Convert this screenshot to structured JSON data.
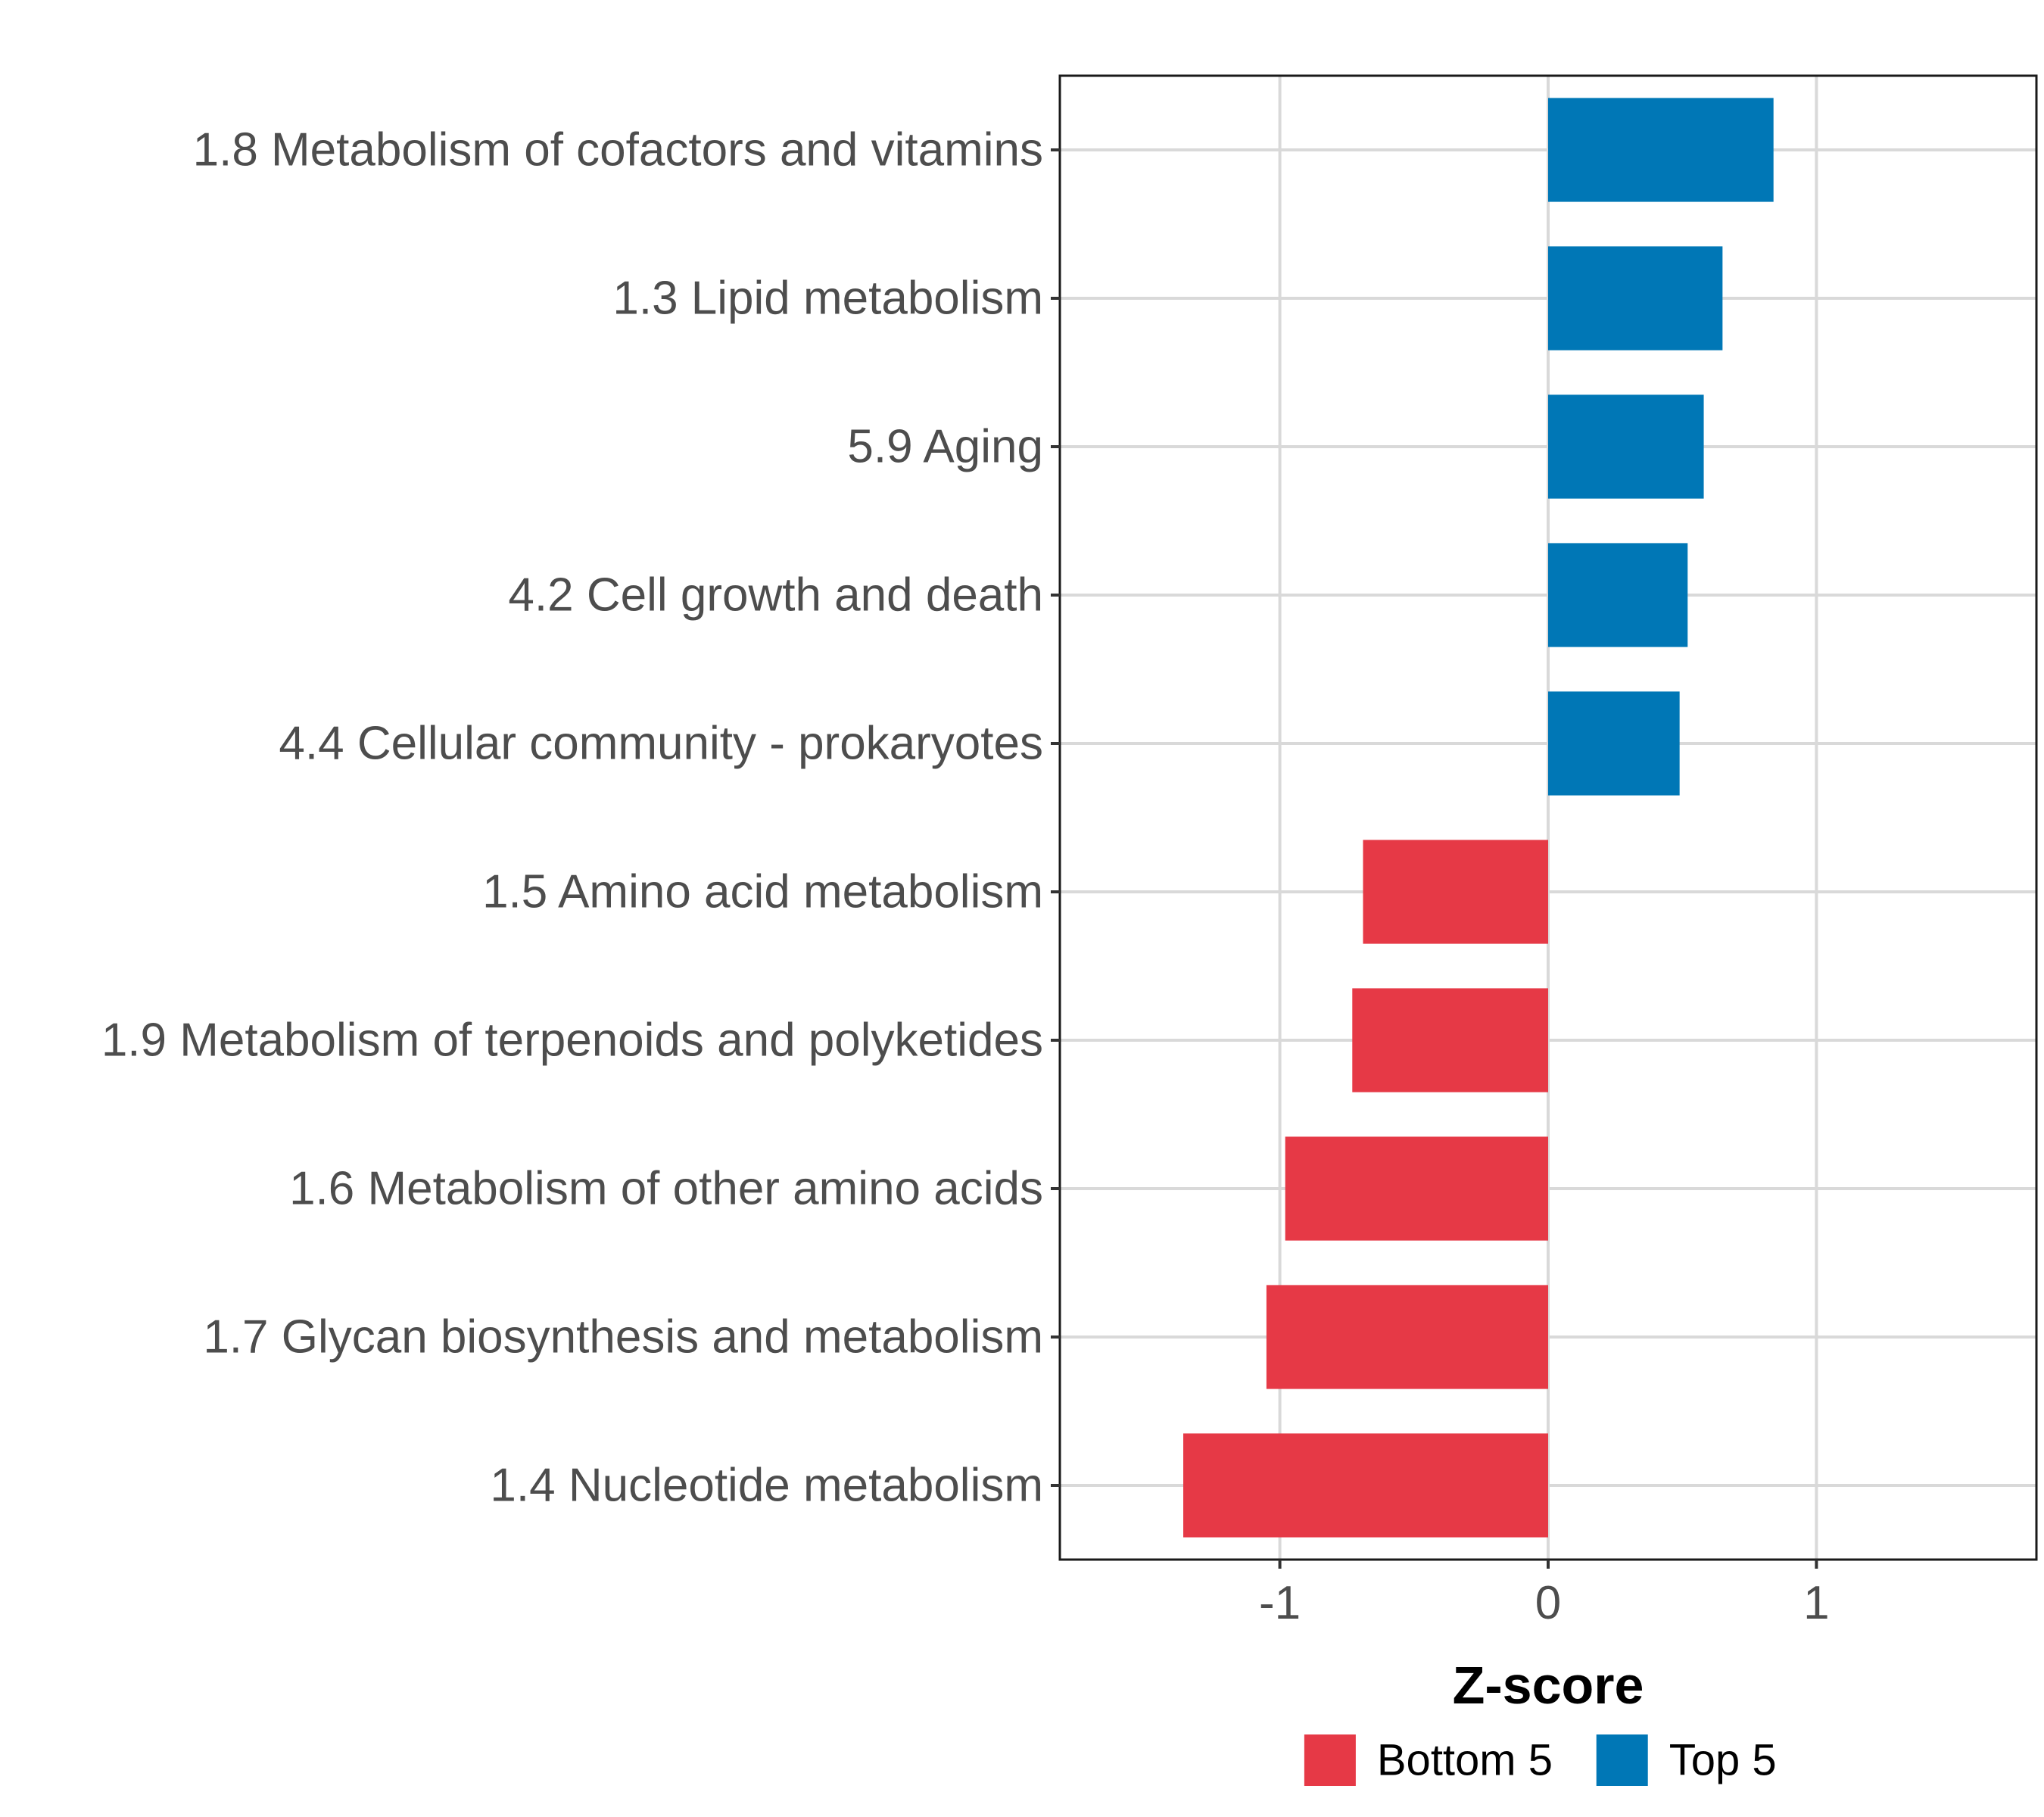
{
  "chart_data": {
    "type": "bar",
    "orientation": "horizontal",
    "title": "",
    "xlabel": "Z-score",
    "ylabel": "",
    "xlim": [
      -1.82,
      1.82
    ],
    "xticks": [
      -1,
      0,
      1
    ],
    "xtick_labels": [
      "-1",
      "0",
      "1"
    ],
    "grid": true,
    "legend_position": "bottom",
    "categories": [
      "1.8 Metabolism of cofactors and vitamins",
      "1.3 Lipid metabolism",
      "5.9 Aging",
      "4.2 Cell growth and death",
      "4.4 Cellular community - prokaryotes",
      "1.5 Amino acid metabolism",
      "1.9 Metabolism of terpenoids and polyketides",
      "1.6 Metabolism of other amino acids",
      "1.7 Glycan biosynthesis and metabolism",
      "1.4 Nucleotide metabolism"
    ],
    "values": [
      0.84,
      0.65,
      0.58,
      0.52,
      0.49,
      -0.69,
      -0.73,
      -0.98,
      -1.05,
      -1.36
    ],
    "groups": [
      "Top 5",
      "Top 5",
      "Top 5",
      "Top 5",
      "Top 5",
      "Bottom 5",
      "Bottom 5",
      "Bottom 5",
      "Bottom 5",
      "Bottom 5"
    ],
    "legend": [
      {
        "name": "Bottom 5",
        "color": "#e63946"
      },
      {
        "name": "Top 5",
        "color": "#0077b6"
      }
    ]
  }
}
